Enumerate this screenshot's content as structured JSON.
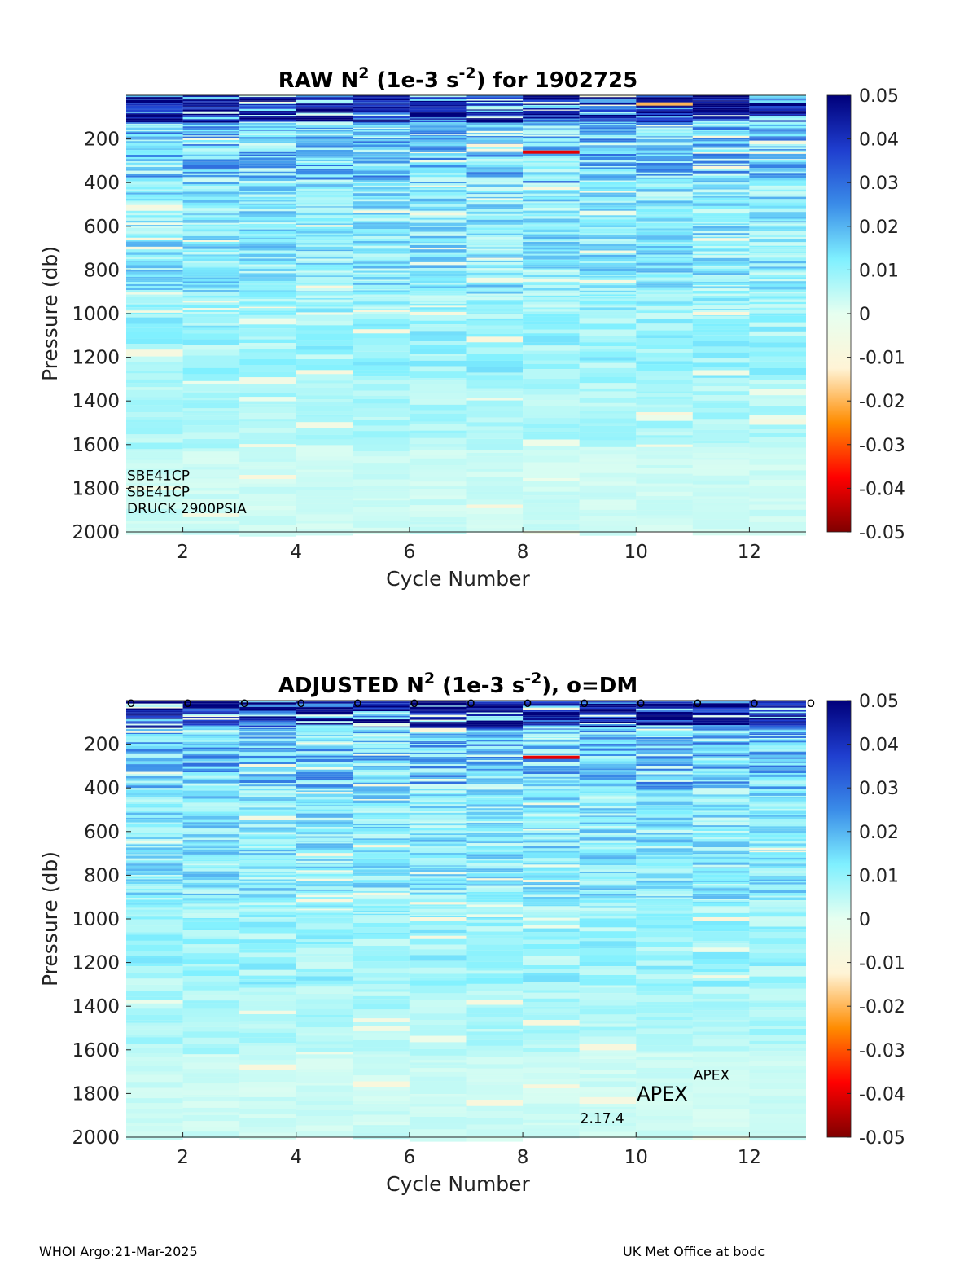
{
  "chart_data": [
    {
      "type": "heatmap",
      "title": "RAW N² (1e-3 s⁻²) for 1902725",
      "title_parts": {
        "pre": "RAW N",
        "sup1": "2",
        "mid": " (1e-3 s",
        "sup2": "-2",
        "post": ") for 1902725"
      },
      "xlabel": "Cycle Number",
      "ylabel": "Pressure (db)",
      "xlim": [
        1,
        13
      ],
      "ylim": [
        2000,
        0
      ],
      "x_ticks": [
        2,
        4,
        6,
        8,
        10,
        12
      ],
      "y_ticks": [
        200,
        400,
        600,
        800,
        1000,
        1200,
        1400,
        1600,
        1800,
        2000
      ],
      "cycles": [
        1,
        2,
        3,
        4,
        5,
        6,
        7,
        8,
        9,
        10,
        11,
        12
      ],
      "colorbar": {
        "range": [
          -0.05,
          0.05
        ],
        "ticks": [
          "0.05",
          "0.04",
          "0.03",
          "0.02",
          "0.01",
          "0",
          "-0.01",
          "-0.02",
          "-0.03",
          "-0.04",
          "-0.05"
        ],
        "colors": [
          "#800000",
          "#ff0000",
          "#ff8c00",
          "#fff4d6",
          "#e6fff0",
          "#7ff0ff",
          "#3a8ce8",
          "#1f3ecf",
          "#00007a"
        ]
      },
      "annotations": [
        {
          "text": "SBE41CP",
          "cycle": 1,
          "pressure": 1740
        },
        {
          "text": "SBE41CP",
          "cycle": 1,
          "pressure": 1815
        },
        {
          "text": "DRUCK 2900PSIA",
          "cycle": 1,
          "pressure": 1892
        }
      ],
      "notable_values": [
        {
          "cycle": 1,
          "pressure": 30,
          "value": 0.05
        },
        {
          "cycle": 8,
          "pressure": 260,
          "value": -0.04
        },
        {
          "cycle": 7,
          "pressure": 230,
          "value": -0.012
        },
        {
          "cycle": 11,
          "pressure": 1000,
          "value": -0.01
        },
        {
          "cycle": 6,
          "pressure": 1000,
          "value": -0.008
        },
        {
          "cycle": 10,
          "pressure": 40,
          "value": -0.02
        }
      ]
    },
    {
      "type": "heatmap",
      "title": "ADJUSTED N² (1e-3 s⁻²), o=DM",
      "title_parts": {
        "pre": "ADJUSTED N",
        "sup1": "2",
        "mid": " (1e-3 s",
        "sup2": "-2",
        "post": "), o=DM"
      },
      "xlabel": "Cycle Number",
      "ylabel": "Pressure (db)",
      "xlim": [
        1,
        13
      ],
      "ylim": [
        2000,
        0
      ],
      "x_ticks": [
        2,
        4,
        6,
        8,
        10,
        12
      ],
      "y_ticks": [
        200,
        400,
        600,
        800,
        1000,
        1200,
        1400,
        1600,
        1800,
        2000
      ],
      "cycles": [
        1,
        2,
        3,
        4,
        5,
        6,
        7,
        8,
        9,
        10,
        11,
        12
      ],
      "dm_markers": {
        "symbol": "o",
        "cycles": [
          1,
          2,
          3,
          4,
          5,
          6,
          7,
          8,
          9,
          10,
          11,
          12,
          13
        ]
      },
      "colorbar": {
        "range": [
          -0.05,
          0.05
        ],
        "ticks": [
          "0.05",
          "0.04",
          "0.03",
          "0.02",
          "0.01",
          "0",
          "-0.01",
          "-0.02",
          "-0.03",
          "-0.04",
          "-0.05"
        ]
      },
      "annotations": [
        {
          "text": "APEX",
          "cycle": 11,
          "pressure": 1715,
          "size": "small"
        },
        {
          "text": "APEX",
          "cycle": 10,
          "pressure": 1810,
          "size": "large"
        },
        {
          "text": "2.17.4",
          "cycle": 9,
          "pressure": 1912,
          "size": "small"
        }
      ],
      "notable_values": [
        {
          "cycle": 8,
          "pressure": 260,
          "value": -0.04
        },
        {
          "cycle": 11,
          "pressure": 1000,
          "value": -0.01
        },
        {
          "cycle": 6,
          "pressure": 1000,
          "value": -0.008
        },
        {
          "cycle": 8,
          "pressure": 60,
          "value": 0.05
        }
      ]
    }
  ],
  "footer": {
    "left": "WHOI Argo:21-Mar-2025",
    "right": "UK Met Office at bodc"
  }
}
